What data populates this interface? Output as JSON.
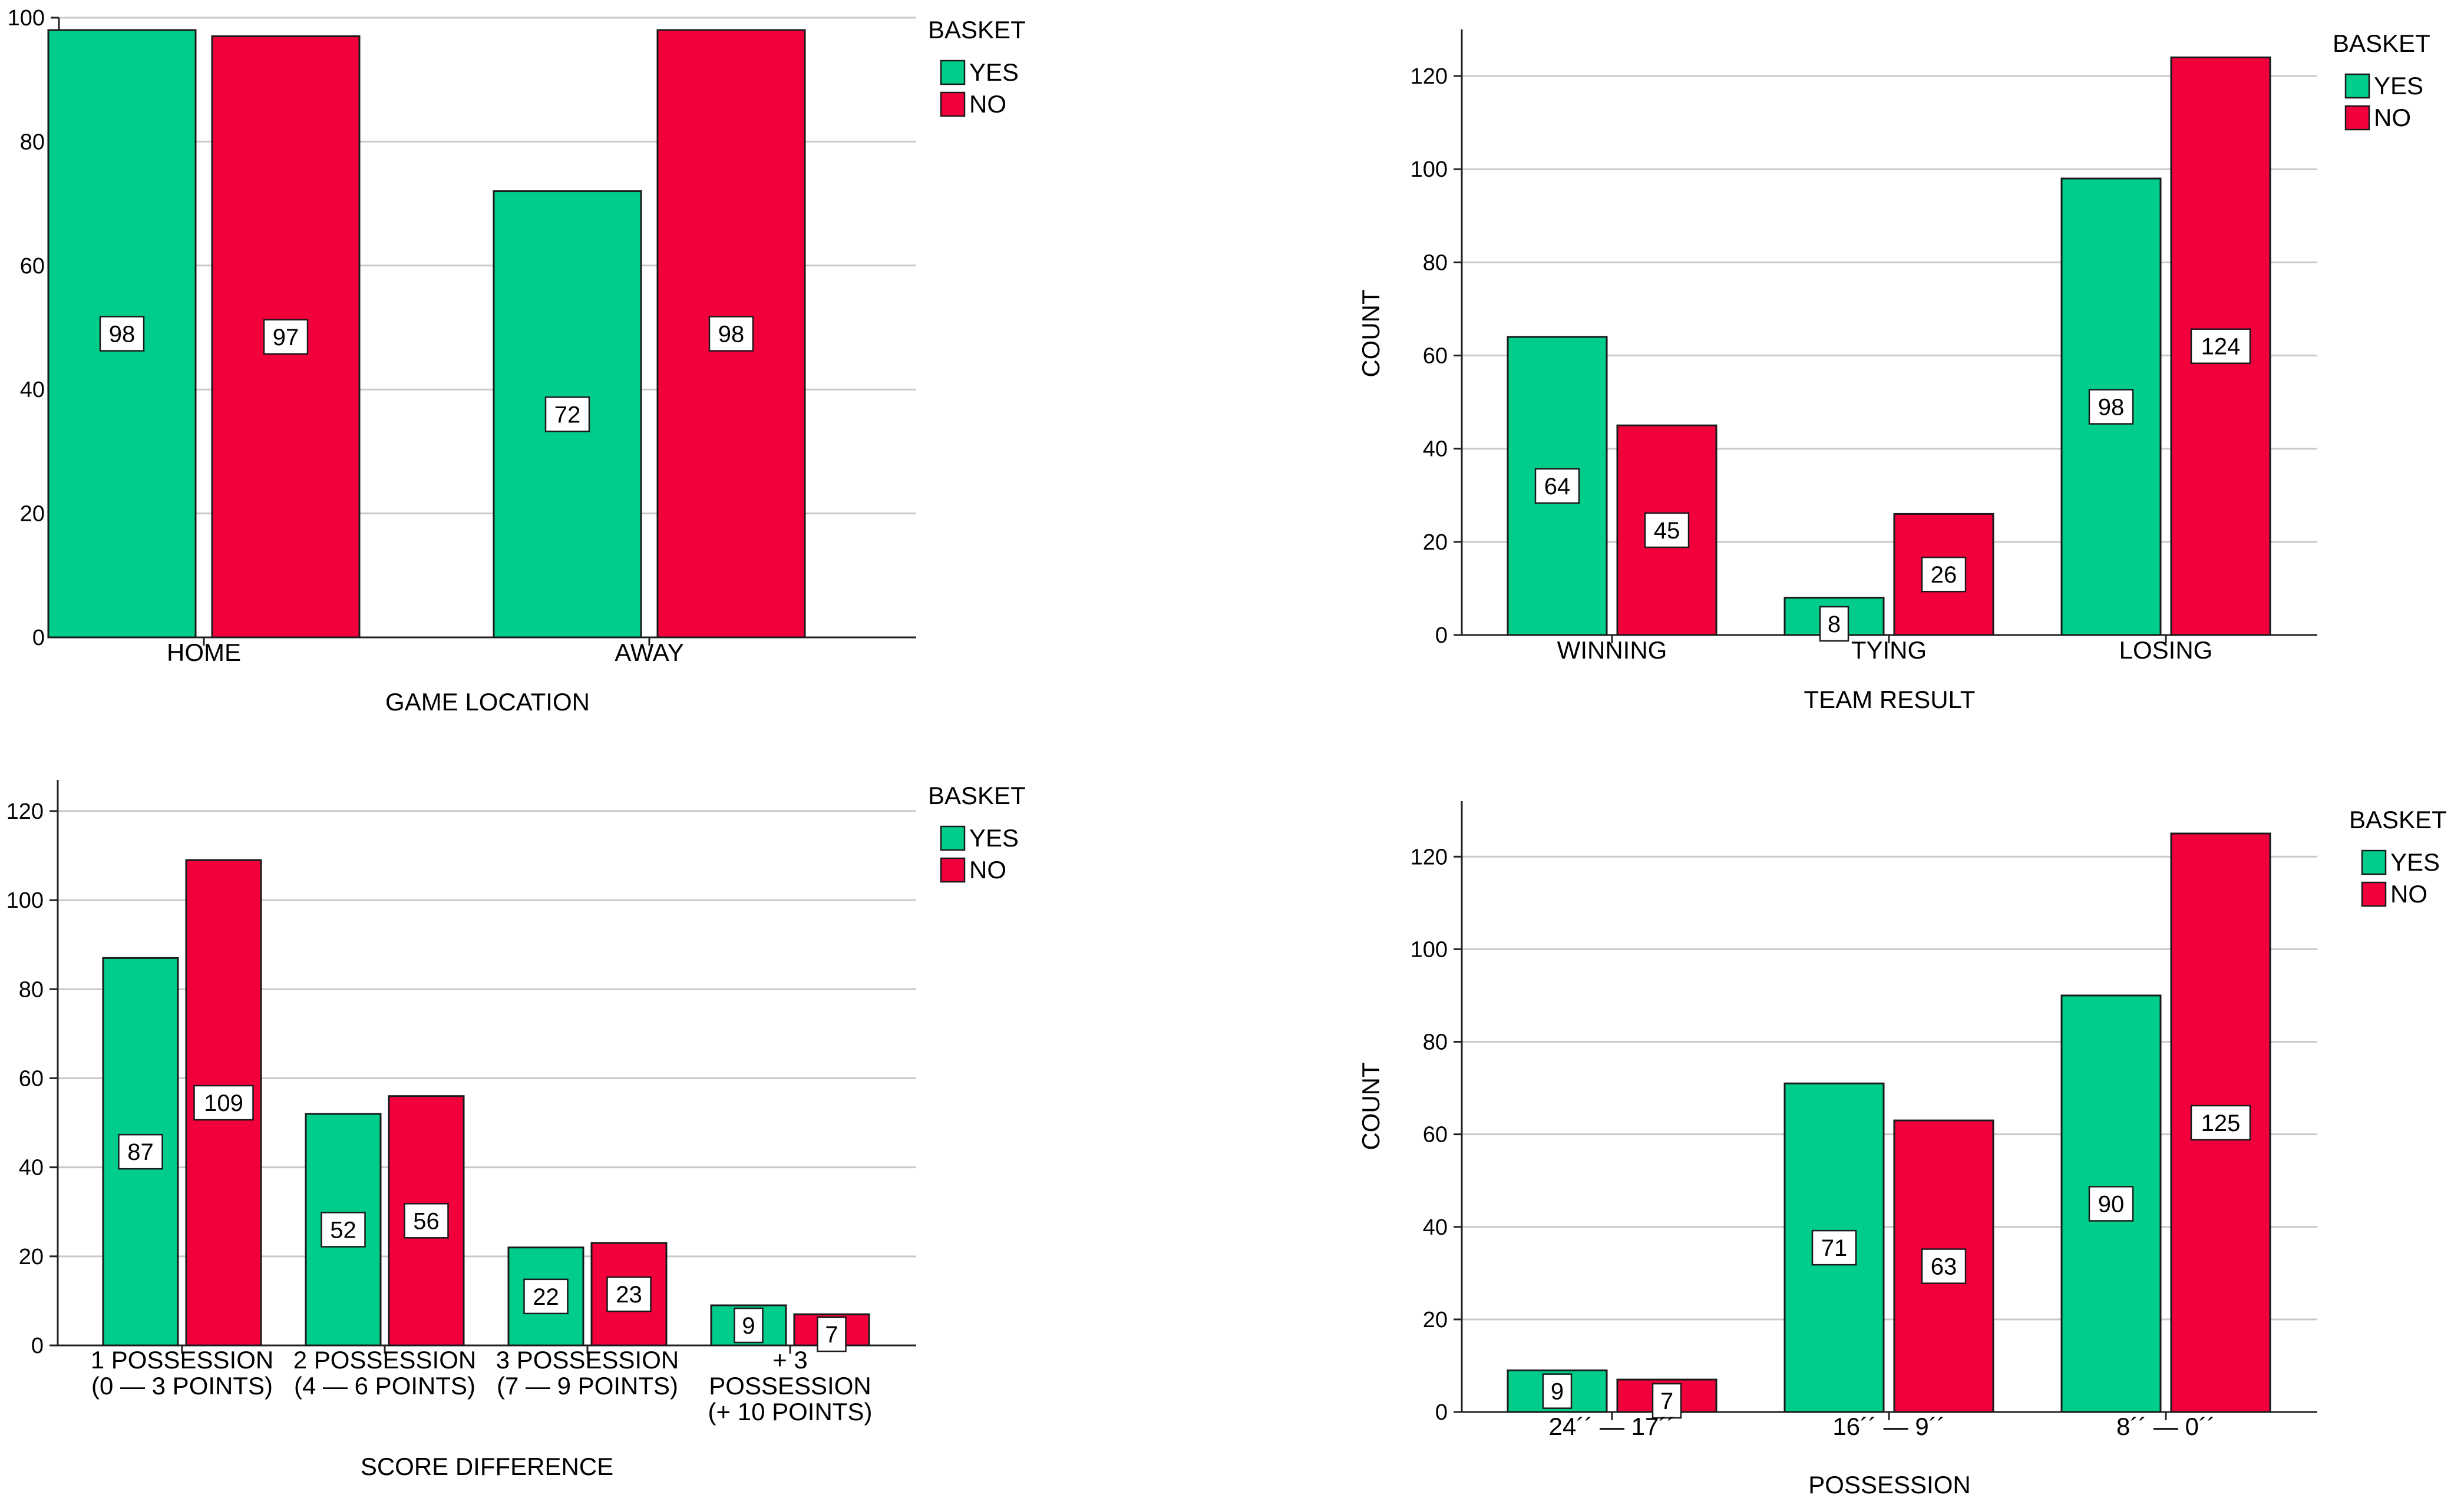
{
  "colors": {
    "yes": "#00CC8B",
    "no": "#F2003C",
    "grid": "#C9C9C9",
    "axis": "#222222"
  },
  "chart_data": [
    {
      "type": "bar",
      "title": "",
      "xlabel": "GAME LOCATION",
      "ylabel": "",
      "categories": [
        [
          "HOME"
        ],
        [
          "AWAY"
        ]
      ],
      "series": [
        {
          "name": "YES",
          "values": [
            98,
            72
          ]
        },
        {
          "name": "NO",
          "values": [
            97,
            98
          ]
        }
      ],
      "ylim": [
        0,
        100
      ],
      "yticks": [
        0,
        20,
        40,
        60,
        80,
        100
      ],
      "grid": true,
      "legend": {
        "title": "BASKET",
        "position": "top-right",
        "items": [
          "YES",
          "NO"
        ]
      }
    },
    {
      "type": "bar",
      "title": "",
      "xlabel": "TEAM RESULT",
      "ylabel": "COUNT",
      "categories": [
        [
          "WINNING"
        ],
        [
          "TYING"
        ],
        [
          "LOSING"
        ]
      ],
      "series": [
        {
          "name": "YES",
          "values": [
            64,
            8,
            98
          ]
        },
        {
          "name": "NO",
          "values": [
            45,
            26,
            124
          ]
        }
      ],
      "ylim": [
        0,
        130
      ],
      "yticks": [
        0,
        20,
        40,
        60,
        80,
        100,
        120
      ],
      "grid": true,
      "legend": {
        "title": "BASKET",
        "position": "top-right",
        "items": [
          "YES",
          "NO"
        ]
      }
    },
    {
      "type": "bar",
      "title": "",
      "xlabel": "SCORE DIFFERENCE",
      "ylabel": "",
      "categories": [
        [
          "1 POSSESSION",
          "(0 — 3 POINTS)"
        ],
        [
          "2 POSSESSION",
          "(4 — 6 POINTS)"
        ],
        [
          "3 POSSESSION",
          "(7 — 9 POINTS)"
        ],
        [
          "+ 3",
          "POSSESSION",
          "(+ 10 POINTS)"
        ]
      ],
      "series": [
        {
          "name": "YES",
          "values": [
            87,
            52,
            22,
            9
          ]
        },
        {
          "name": "NO",
          "values": [
            109,
            56,
            23,
            7
          ]
        }
      ],
      "ylim": [
        0,
        127
      ],
      "yticks": [
        0,
        20,
        40,
        60,
        80,
        100,
        120
      ],
      "grid": true,
      "legend": {
        "title": "BASKET",
        "position": "top-right",
        "items": [
          "YES",
          "NO"
        ]
      }
    },
    {
      "type": "bar",
      "title": "",
      "xlabel": "POSSESSION",
      "ylabel": "COUNT",
      "categories": [
        [
          "24´´ — 17´´"
        ],
        [
          "16´´ — 9´´"
        ],
        [
          "8´´ — 0´´"
        ]
      ],
      "series": [
        {
          "name": "YES",
          "values": [
            9,
            71,
            90
          ]
        },
        {
          "name": "NO",
          "values": [
            7,
            63,
            125
          ]
        }
      ],
      "ylim": [
        0,
        132
      ],
      "yticks": [
        0,
        20,
        40,
        60,
        80,
        100,
        120
      ],
      "grid": true,
      "legend": {
        "title": "BASKET",
        "position": "top-right",
        "items": [
          "YES",
          "NO"
        ]
      }
    }
  ]
}
